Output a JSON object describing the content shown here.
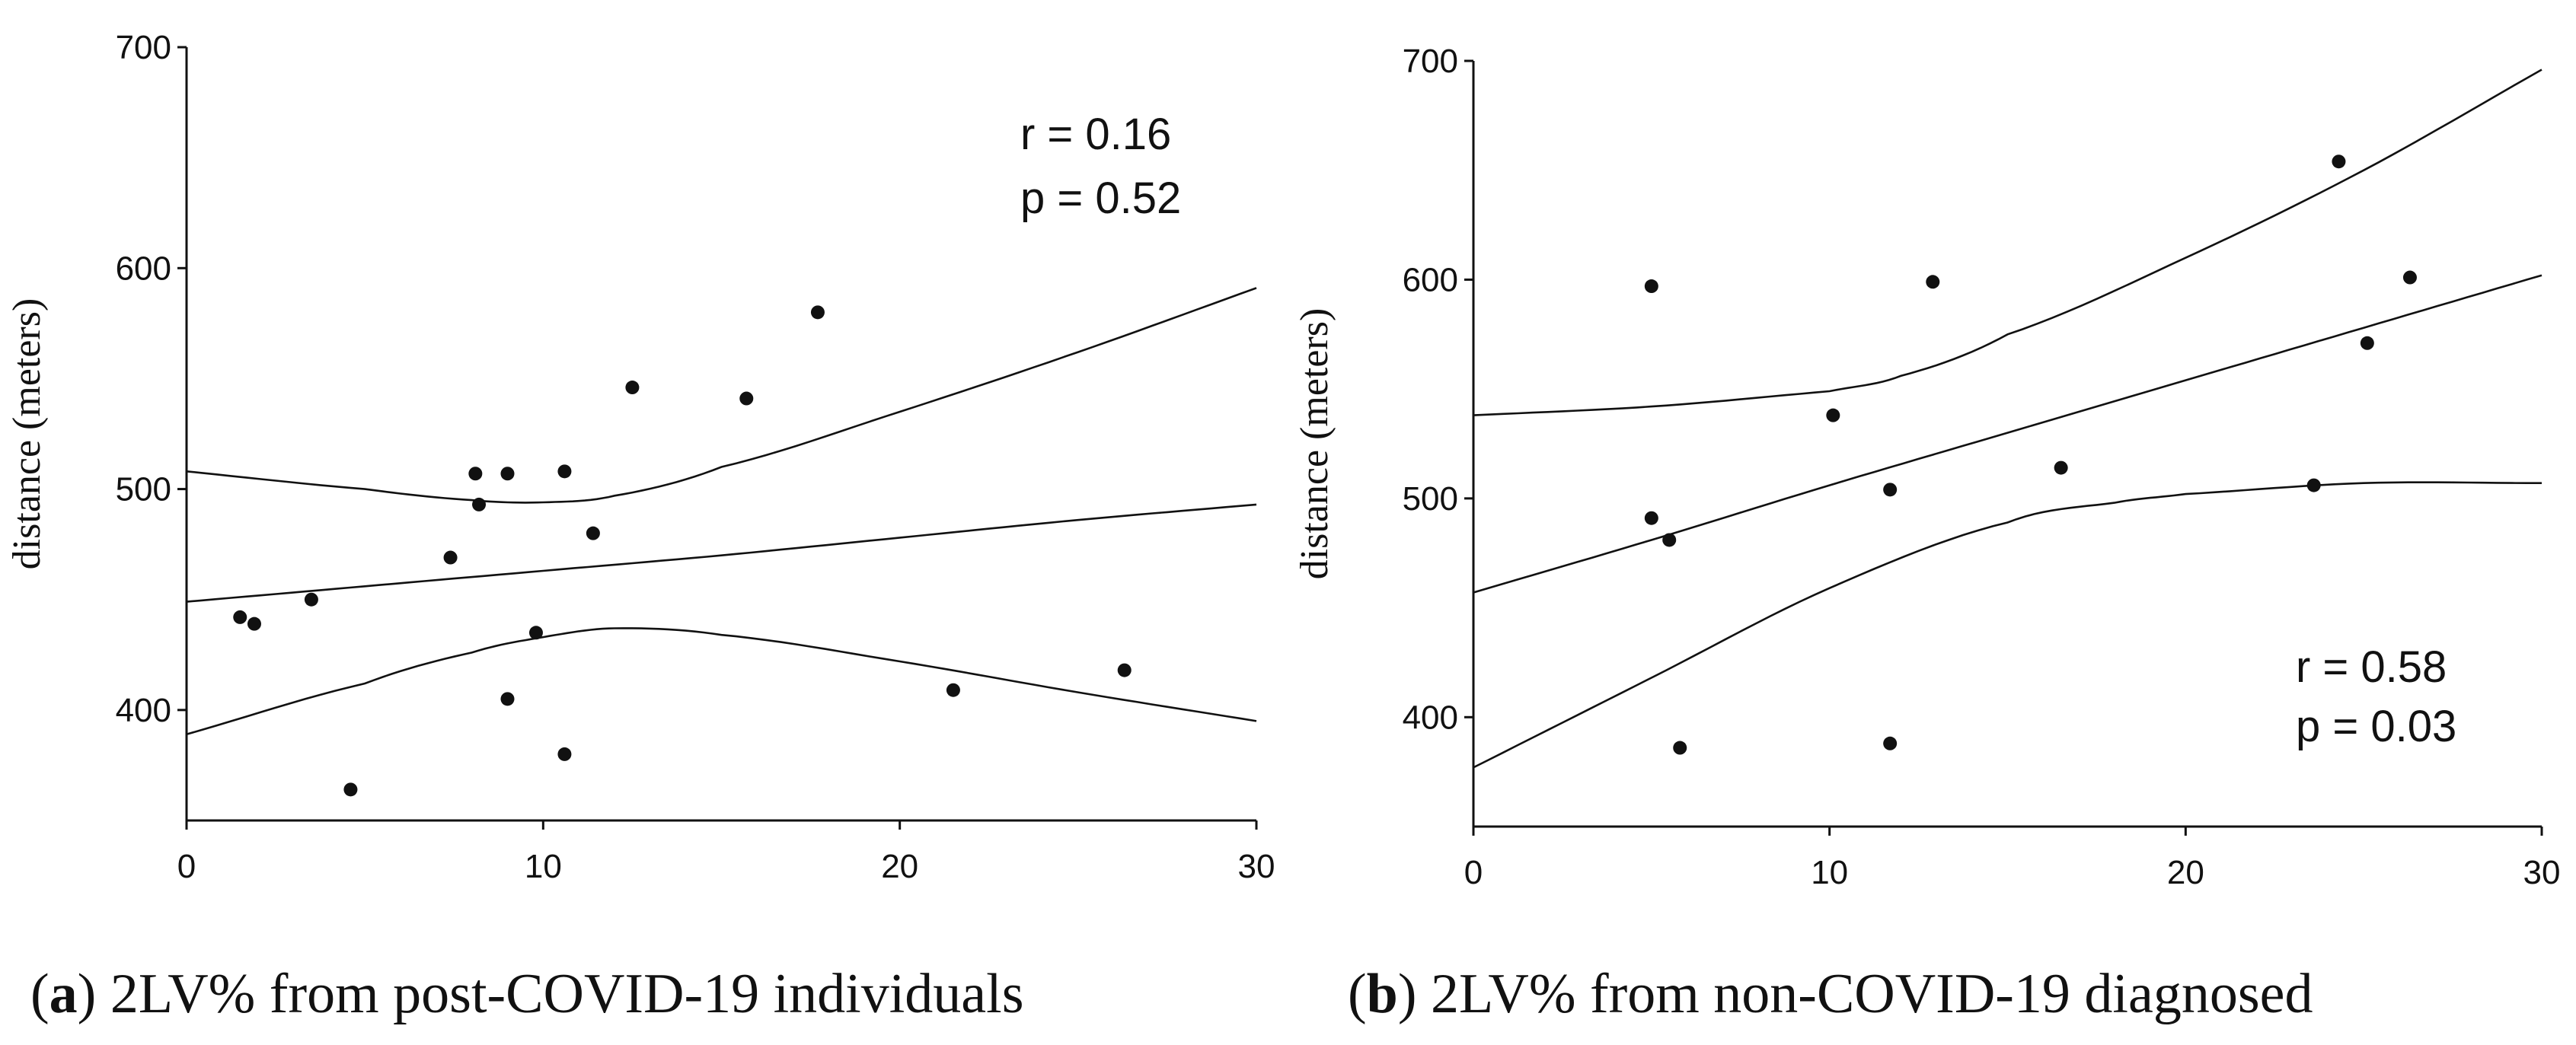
{
  "chart_data": [
    {
      "type": "scatter",
      "ylabel": "distance (meters)",
      "xlabel": "",
      "xlim": [
        0,
        30
      ],
      "ylim": [
        350,
        700
      ],
      "xticks": [
        "0",
        "10",
        "20",
        "30"
      ],
      "yticks": [
        "400",
        "500",
        "600",
        "700"
      ],
      "annotation": [
        "r = 0.16",
        "p = 0.52"
      ],
      "caption": {
        "letter": "a",
        "text": "2LV% from post-COVID-19 individuals"
      },
      "points": [
        {
          "x": 1.5,
          "y": 442
        },
        {
          "x": 1.9,
          "y": 439
        },
        {
          "x": 3.5,
          "y": 450
        },
        {
          "x": 4.6,
          "y": 364
        },
        {
          "x": 7.4,
          "y": 469
        },
        {
          "x": 8.1,
          "y": 507
        },
        {
          "x": 8.2,
          "y": 493
        },
        {
          "x": 9.0,
          "y": 507
        },
        {
          "x": 9.0,
          "y": 405
        },
        {
          "x": 9.8,
          "y": 435
        },
        {
          "x": 10.6,
          "y": 380
        },
        {
          "x": 10.6,
          "y": 508
        },
        {
          "x": 11.4,
          "y": 480
        },
        {
          "x": 12.5,
          "y": 546
        },
        {
          "x": 15.7,
          "y": 541
        },
        {
          "x": 17.7,
          "y": 580
        },
        {
          "x": 21.5,
          "y": 409
        },
        {
          "x": 26.3,
          "y": 418
        }
      ],
      "fit": {
        "x": [
          0,
          5,
          10,
          15,
          20,
          25,
          30
        ],
        "y": [
          449,
          456,
          463,
          470,
          478,
          486,
          493
        ]
      },
      "upper_ci": {
        "x": [
          0,
          5,
          8,
          10,
          12,
          15,
          20,
          25,
          30
        ],
        "y": [
          508,
          500,
          495,
          494,
          497,
          510,
          535,
          562,
          591
        ]
      },
      "lower_ci": {
        "x": [
          0,
          5,
          8,
          10,
          12,
          15,
          20,
          25,
          30
        ],
        "y": [
          389,
          412,
          426,
          433,
          437,
          434,
          422,
          408,
          395
        ]
      }
    },
    {
      "type": "scatter",
      "ylabel": "distance (meters)",
      "xlabel": "",
      "xlim": [
        0,
        30
      ],
      "ylim": [
        350,
        700
      ],
      "xticks": [
        "0",
        "10",
        "20",
        "30"
      ],
      "yticks": [
        "400",
        "500",
        "600",
        "700"
      ],
      "annotation": [
        "r = 0.58",
        "p = 0.03"
      ],
      "caption": {
        "letter": "b",
        "text": "2LV% from non-COVID-19 diagnosed"
      },
      "points": [
        {
          "x": 5.0,
          "y": 597
        },
        {
          "x": 5.0,
          "y": 491
        },
        {
          "x": 5.5,
          "y": 481
        },
        {
          "x": 5.8,
          "y": 386
        },
        {
          "x": 10.1,
          "y": 538
        },
        {
          "x": 11.7,
          "y": 504
        },
        {
          "x": 11.7,
          "y": 388
        },
        {
          "x": 12.9,
          "y": 599
        },
        {
          "x": 16.5,
          "y": 514
        },
        {
          "x": 23.6,
          "y": 506
        },
        {
          "x": 24.3,
          "y": 654
        },
        {
          "x": 25.1,
          "y": 571
        },
        {
          "x": 26.3,
          "y": 601
        }
      ],
      "fit": {
        "x": [
          0,
          5,
          10,
          15,
          20,
          25,
          30
        ],
        "y": [
          457,
          481,
          506,
          530,
          554,
          578,
          602
        ]
      },
      "upper_ci": {
        "x": [
          0,
          5,
          10,
          12,
          15,
          20,
          25,
          30
        ],
        "y": [
          538,
          542,
          549,
          556,
          575,
          610,
          650,
          696
        ]
      },
      "lower_ci": {
        "x": [
          0,
          5,
          10,
          15,
          18,
          20,
          25,
          30
        ],
        "y": [
          377,
          418,
          459,
          489,
          498,
          502,
          507,
          507
        ]
      }
    }
  ]
}
